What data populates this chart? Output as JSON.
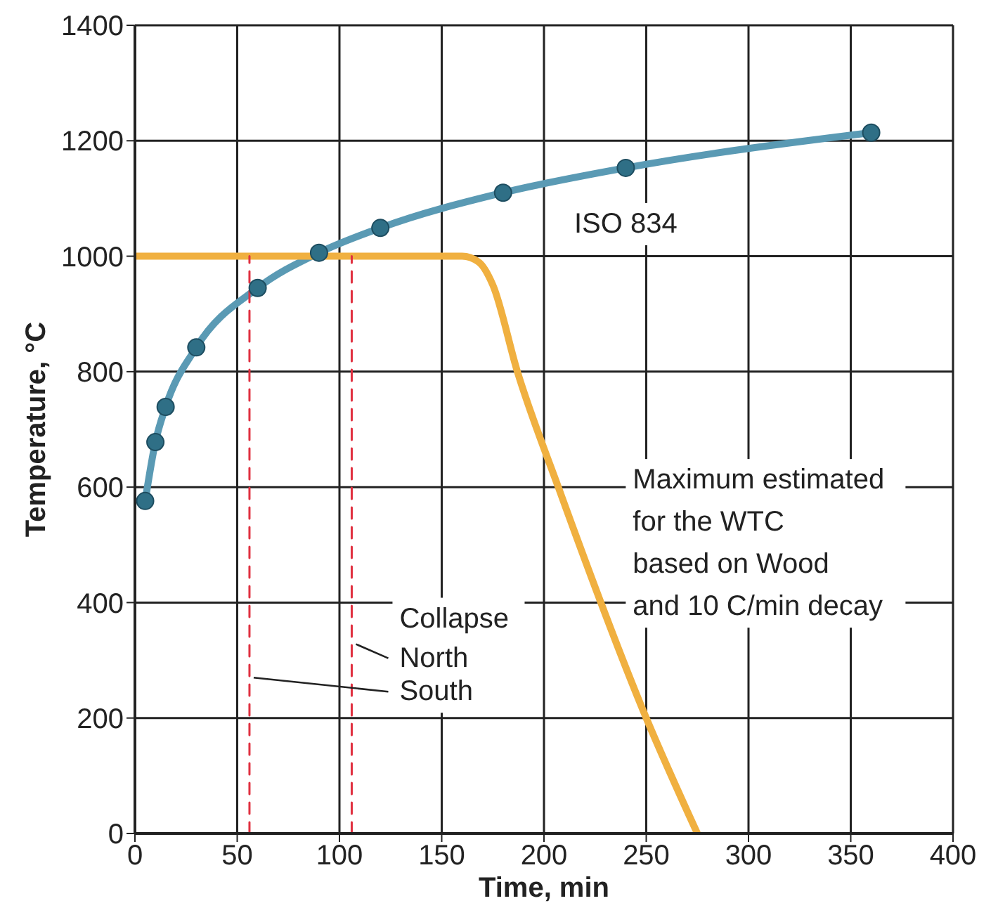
{
  "chart_data": {
    "type": "line",
    "xlabel": "Time, min",
    "ylabel": "Temperature, °C",
    "xlim": [
      0,
      400
    ],
    "xticks": [
      0,
      50,
      100,
      150,
      200,
      250,
      300,
      350,
      400
    ],
    "ylim": [
      0,
      1400
    ],
    "yticks": [
      0,
      200,
      400,
      600,
      800,
      1000,
      1200,
      1400
    ],
    "grid": true,
    "series": [
      {
        "name": "ISO 834",
        "color": "#5a9ab4",
        "marker": "circle",
        "x": [
          5,
          10,
          15,
          30,
          60,
          90,
          120,
          180,
          240,
          360
        ],
        "values": [
          576,
          678,
          739,
          842,
          945,
          1006,
          1049,
          1110,
          1153,
          1214
        ]
      },
      {
        "name": "Maximum estimated\nfor the WTC\nbased on Wood\nand 10 C/min decay",
        "color": "#f0b040",
        "marker": "none",
        "x": [
          0,
          160,
          168,
          175,
          187,
          207,
          250,
          275
        ],
        "values": [
          1000,
          1000,
          990,
          950,
          800,
          600,
          200,
          0
        ]
      },
      {
        "color": "#e03040",
        "line_style": "dashed",
        "marker": "none",
        "x": [
          56,
          56
        ],
        "values": [
          0,
          1000
        ]
      },
      {
        "color": "#e03040",
        "line_style": "dashed",
        "marker": "none",
        "x": [
          106,
          106
        ],
        "values": [
          0,
          1000
        ]
      }
    ],
    "annotations": [
      "Collapse",
      {
        "text": "North",
        "x": 106,
        "y": 328
      },
      {
        "text": "South",
        "x": 56,
        "y": 270
      }
    ]
  }
}
